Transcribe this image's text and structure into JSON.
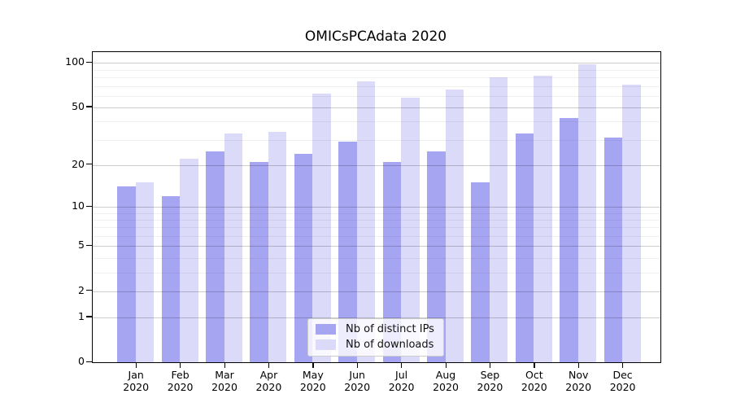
{
  "title": "OMICsPCAdata 2020",
  "chart_data": {
    "type": "bar",
    "title": "OMICsPCAdata 2020",
    "xlabel": "",
    "ylabel": "",
    "y_scale": "log1p",
    "ylim": [
      0,
      100
    ],
    "grid": "on",
    "legend_position": "bottom-center-inside",
    "categories": [
      "Jan",
      "Feb",
      "Mar",
      "Apr",
      "May",
      "Jun",
      "Jul",
      "Aug",
      "Sep",
      "Oct",
      "Nov",
      "Dec"
    ],
    "category_year": "2020",
    "series": [
      {
        "name": "Nb of distinct IPs",
        "color": "#a6a5f2",
        "values": [
          14,
          12,
          25,
          21,
          24,
          29,
          21,
          25,
          15,
          33,
          42,
          31
        ]
      },
      {
        "name": "Nb of downloads",
        "color": "#dbdaf9",
        "values": [
          15,
          22,
          33,
          34,
          62,
          75,
          58,
          66,
          80,
          82,
          98,
          71
        ]
      }
    ],
    "y_ticks": [
      0,
      1,
      2,
      5,
      10,
      20,
      50,
      100
    ],
    "y_minor_gridlines": [
      3,
      4,
      6,
      7,
      8,
      9,
      30,
      40,
      60,
      70,
      80,
      90
    ]
  },
  "legend": {
    "items": [
      {
        "label": "Nb of distinct IPs"
      },
      {
        "label": "Nb of downloads"
      }
    ]
  }
}
